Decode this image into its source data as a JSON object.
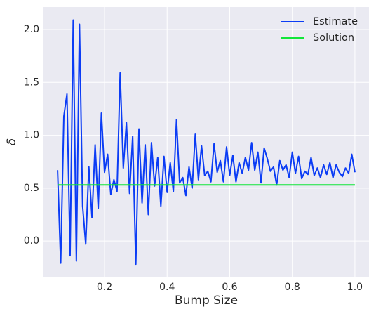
{
  "chart_data": {
    "type": "line",
    "xlabel": "Bump Size",
    "ylabel": "δ",
    "x": [
      0.05,
      0.06,
      0.07,
      0.08,
      0.09,
      0.1,
      0.11,
      0.12,
      0.13,
      0.14,
      0.15,
      0.16,
      0.17,
      0.18,
      0.19,
      0.2,
      0.21,
      0.22,
      0.23,
      0.24,
      0.25,
      0.26,
      0.27,
      0.28,
      0.29,
      0.3,
      0.31,
      0.32,
      0.33,
      0.34,
      0.35,
      0.36,
      0.37,
      0.38,
      0.39,
      0.4,
      0.41,
      0.42,
      0.43,
      0.44,
      0.45,
      0.46,
      0.47,
      0.48,
      0.49,
      0.5,
      0.51,
      0.52,
      0.53,
      0.54,
      0.55,
      0.56,
      0.57,
      0.58,
      0.59,
      0.6,
      0.61,
      0.62,
      0.63,
      0.64,
      0.65,
      0.66,
      0.67,
      0.68,
      0.69,
      0.7,
      0.71,
      0.72,
      0.73,
      0.74,
      0.75,
      0.76,
      0.77,
      0.78,
      0.79,
      0.8,
      0.81,
      0.82,
      0.83,
      0.84,
      0.85,
      0.86,
      0.87,
      0.88,
      0.89,
      0.9,
      0.91,
      0.92,
      0.93,
      0.94,
      0.95,
      0.96,
      0.97,
      0.98,
      0.99,
      1.0
    ],
    "series": [
      {
        "name": "Estimate",
        "color": "#0b3cf5",
        "values": [
          0.67,
          -0.21,
          1.18,
          1.39,
          -0.14,
          2.09,
          -0.19,
          2.05,
          0.33,
          -0.03,
          0.7,
          0.22,
          0.91,
          0.31,
          1.21,
          0.65,
          0.82,
          0.44,
          0.58,
          0.47,
          1.59,
          0.69,
          1.12,
          0.45,
          0.99,
          -0.22,
          1.06,
          0.36,
          0.91,
          0.25,
          0.93,
          0.52,
          0.79,
          0.33,
          0.8,
          0.46,
          0.74,
          0.47,
          1.15,
          0.55,
          0.6,
          0.43,
          0.7,
          0.5,
          1.01,
          0.58,
          0.9,
          0.62,
          0.66,
          0.56,
          0.92,
          0.65,
          0.76,
          0.56,
          0.89,
          0.62,
          0.81,
          0.56,
          0.74,
          0.64,
          0.79,
          0.67,
          0.93,
          0.67,
          0.84,
          0.55,
          0.88,
          0.78,
          0.66,
          0.7,
          0.53,
          0.76,
          0.67,
          0.72,
          0.6,
          0.84,
          0.64,
          0.8,
          0.59,
          0.66,
          0.63,
          0.79,
          0.62,
          0.69,
          0.6,
          0.72,
          0.63,
          0.74,
          0.6,
          0.72,
          0.65,
          0.61,
          0.69,
          0.64,
          0.82,
          0.65
        ]
      },
      {
        "name": "Solution",
        "color": "#12e63a",
        "values": [
          0.53,
          0.53,
          0.53,
          0.53,
          0.53,
          0.53,
          0.53,
          0.53,
          0.53,
          0.53,
          0.53,
          0.53,
          0.53,
          0.53,
          0.53,
          0.53,
          0.53,
          0.53,
          0.53,
          0.53,
          0.53,
          0.53,
          0.53,
          0.53,
          0.53,
          0.53,
          0.53,
          0.53,
          0.53,
          0.53,
          0.53,
          0.53,
          0.53,
          0.53,
          0.53,
          0.53,
          0.53,
          0.53,
          0.53,
          0.53,
          0.53,
          0.53,
          0.53,
          0.53,
          0.53,
          0.53,
          0.53,
          0.53,
          0.53,
          0.53,
          0.53,
          0.53,
          0.53,
          0.53,
          0.53,
          0.53,
          0.53,
          0.53,
          0.53,
          0.53,
          0.53,
          0.53,
          0.53,
          0.53,
          0.53,
          0.53,
          0.53,
          0.53,
          0.53,
          0.53,
          0.53,
          0.53,
          0.53,
          0.53,
          0.53,
          0.53,
          0.53,
          0.53,
          0.53,
          0.53,
          0.53,
          0.53,
          0.53,
          0.53,
          0.53,
          0.53,
          0.53,
          0.53,
          0.53,
          0.53,
          0.53,
          0.53,
          0.53,
          0.53,
          0.53,
          0.53
        ]
      }
    ],
    "xlim": [
      0.005,
      1.045
    ],
    "ylim": [
      -0.345,
      2.213
    ],
    "xticks": [
      0.2,
      0.4,
      0.6,
      0.8,
      {
        "value": 1.0,
        "label": "1.0"
      }
    ],
    "yticks": [
      {
        "value": 0.0,
        "label": "0.0"
      },
      0.5,
      {
        "value": 1.0,
        "label": "1.0"
      },
      1.5,
      {
        "value": 2.0,
        "label": "2.0"
      }
    ],
    "grid": true,
    "legend": "upper right"
  }
}
